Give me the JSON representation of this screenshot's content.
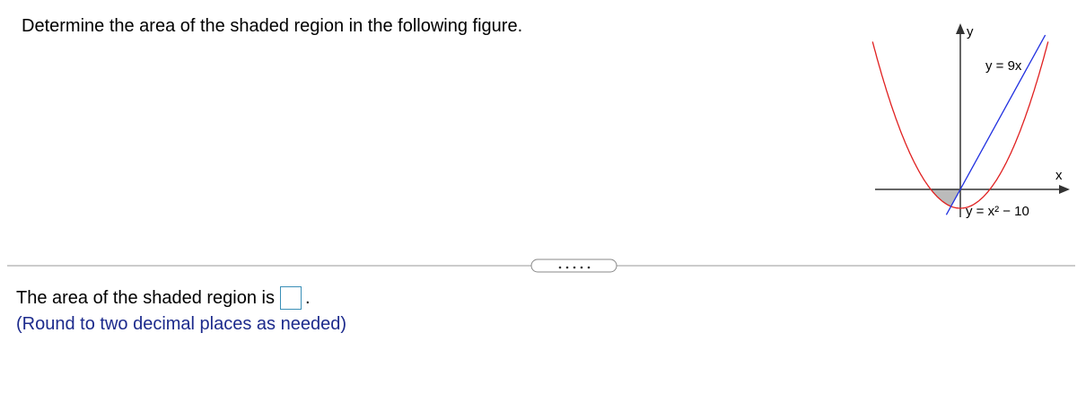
{
  "question": "Determine the area of the shaded region in the following figure.",
  "figure": {
    "y_axis_label": "y",
    "x_axis_label": "x",
    "line_label": "y = 9x",
    "parabola_label": "y = x² − 10"
  },
  "answer": {
    "prompt": "The area of the shaded region is",
    "suffix": ".",
    "hint": "(Round to two decimal places as needed)"
  }
}
